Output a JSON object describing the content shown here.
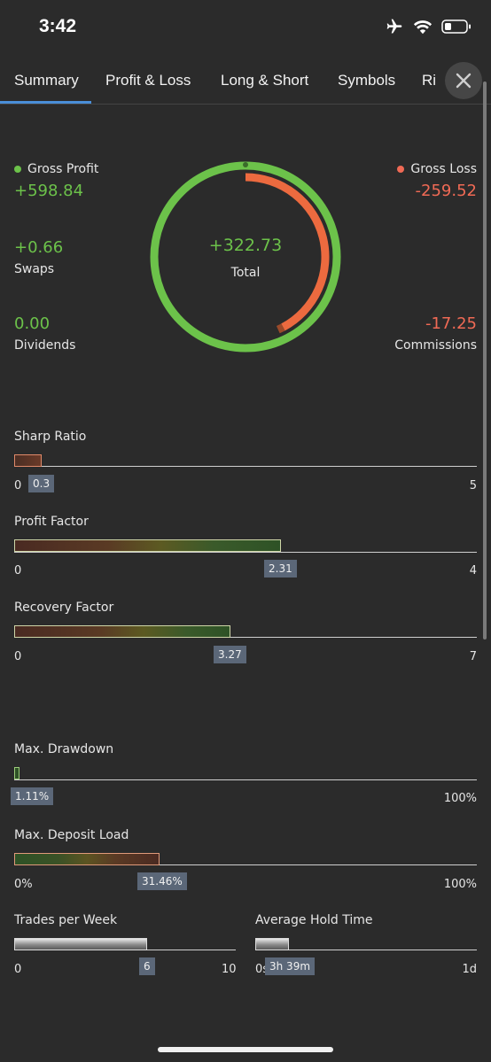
{
  "status": {
    "time": "3:42"
  },
  "tabs": [
    {
      "label": "Summary"
    },
    {
      "label": "Profit & Loss"
    },
    {
      "label": "Long & Short"
    },
    {
      "label": "Symbols"
    },
    {
      "label": "Ri"
    }
  ],
  "summary": {
    "gross_profit": {
      "label": "Gross Profit",
      "value": "+598.84"
    },
    "gross_loss": {
      "label": "Gross Loss",
      "value": "-259.52"
    },
    "swaps": {
      "label": "Swaps",
      "value": "+0.66"
    },
    "dividends": {
      "label": "Dividends",
      "value": "0.00"
    },
    "commissions": {
      "label": "Commissions",
      "value": "-17.25"
    },
    "total": {
      "label": "Total",
      "value": "+322.73"
    },
    "donut": {
      "profit_fraction": 1.0,
      "loss_fraction": 0.433
    }
  },
  "metrics": {
    "sharp_ratio": {
      "title": "Sharp Ratio",
      "value": "0.3",
      "min": "0",
      "max": "5",
      "fraction": 0.06
    },
    "profit_factor": {
      "title": "Profit Factor",
      "value": "2.31",
      "min": "0",
      "max": "4",
      "fraction": 0.578
    },
    "recovery_factor": {
      "title": "Recovery Factor",
      "value": "3.27",
      "min": "0",
      "max": "7",
      "fraction": 0.467
    },
    "max_drawdown": {
      "title": "Max. Drawdown",
      "value": "1.11%",
      "max": "100%",
      "fraction": 0.0111
    },
    "max_deposit_load": {
      "title": "Max. Deposit Load",
      "value": "31.46%",
      "min": "0%",
      "max": "100%",
      "fraction": 0.3146
    },
    "trades_per_week": {
      "title": "Trades per Week",
      "value": "6",
      "min": "0",
      "max": "10",
      "fraction": 0.6
    },
    "avg_hold_time": {
      "title": "Average Hold Time",
      "value": "3h 39m",
      "min": "0s",
      "max": "1d",
      "fraction": 0.152
    }
  },
  "colors": {
    "profit": "#6cc24a",
    "loss": "#f06a55",
    "tag": "#5b6778",
    "accent": "#4a8fd8"
  }
}
